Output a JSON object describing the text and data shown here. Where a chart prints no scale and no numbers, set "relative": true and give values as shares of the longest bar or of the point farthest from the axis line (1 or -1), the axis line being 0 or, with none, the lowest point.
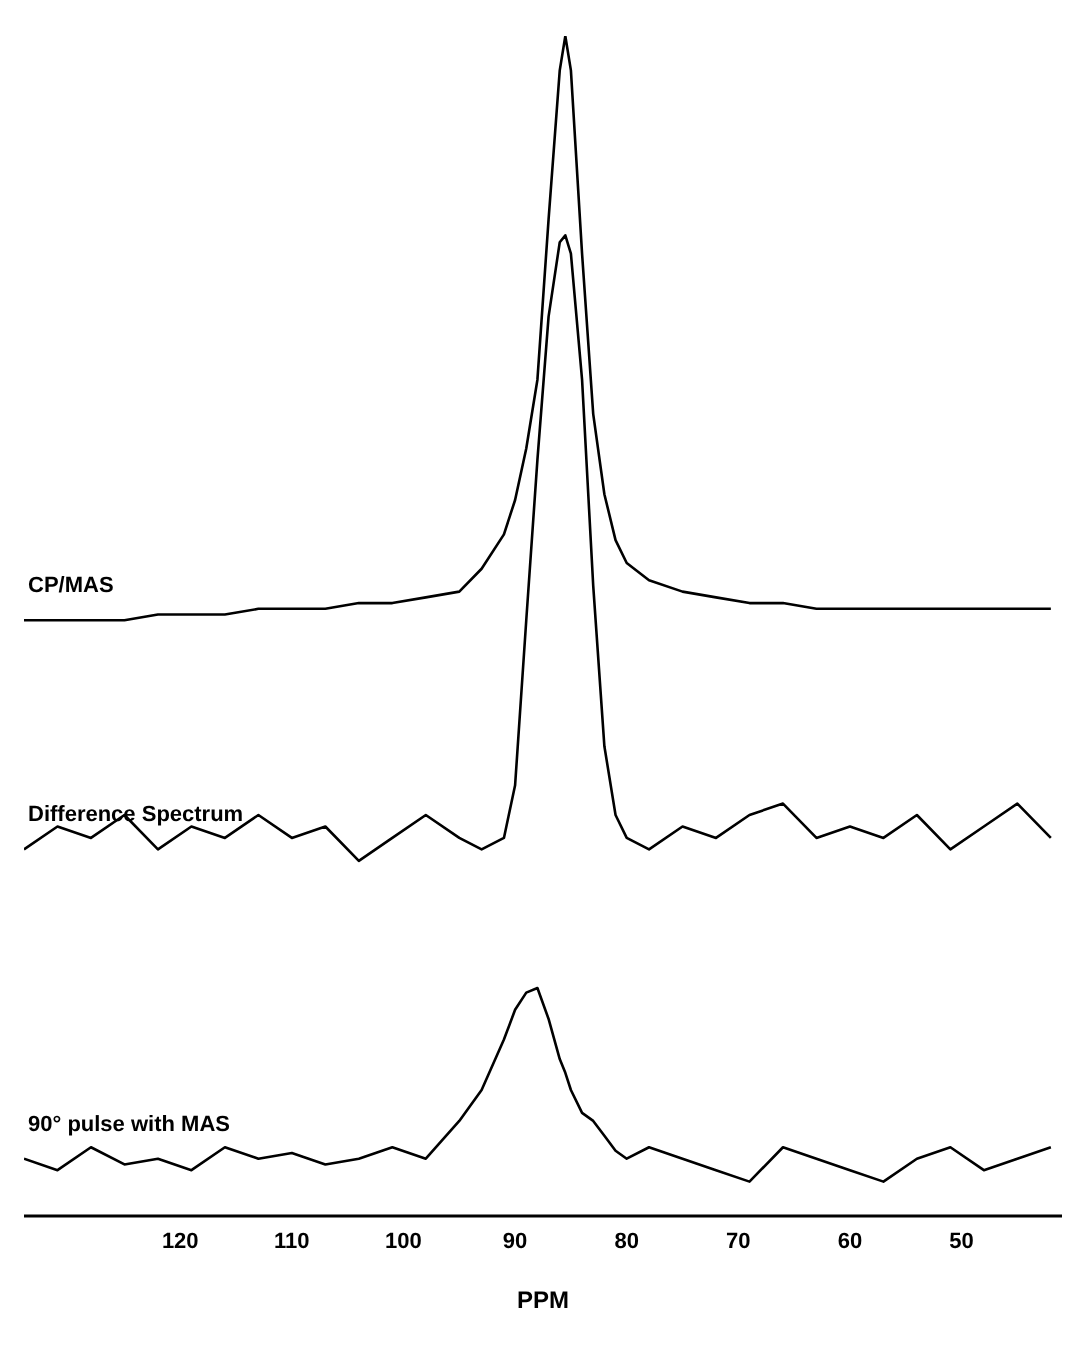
{
  "chart_data": {
    "type": "line",
    "relative": true,
    "xlabel": "PPM",
    "xlim": [
      134,
      41
    ],
    "xticks": [
      120,
      110,
      100,
      90,
      80,
      70,
      60,
      50
    ],
    "x": [
      134,
      131,
      128,
      125,
      122,
      119,
      116,
      113,
      110,
      107,
      104,
      101,
      98,
      95,
      93,
      91,
      90,
      89,
      88,
      87,
      86,
      85.5,
      85,
      84,
      83,
      82,
      81,
      80,
      78,
      75,
      72,
      69,
      66,
      63,
      60,
      57,
      54,
      51,
      48,
      45,
      42
    ],
    "series": [
      {
        "name": "CP/MAS",
        "color": "#000000",
        "values": [
          0.49,
          0.49,
          0.49,
          0.49,
          0.495,
          0.495,
          0.495,
          0.5,
          0.5,
          0.5,
          0.505,
          0.505,
          0.51,
          0.515,
          0.535,
          0.565,
          0.595,
          0.64,
          0.7,
          0.84,
          0.97,
          1.0,
          0.97,
          0.81,
          0.67,
          0.6,
          0.56,
          0.54,
          0.525,
          0.515,
          0.51,
          0.505,
          0.505,
          0.5,
          0.5,
          0.5,
          0.5,
          0.5,
          0.5,
          0.5,
          0.5
        ]
      },
      {
        "name": "Difference Spectrum",
        "color": "#000000",
        "values": [
          0.29,
          0.31,
          0.3,
          0.32,
          0.29,
          0.31,
          0.3,
          0.32,
          0.3,
          0.31,
          0.28,
          0.3,
          0.32,
          0.3,
          0.29,
          0.3,
          0.346,
          0.49,
          0.63,
          0.755,
          0.82,
          0.826,
          0.81,
          0.7,
          0.52,
          0.38,
          0.32,
          0.3,
          0.29,
          0.31,
          0.3,
          0.32,
          0.33,
          0.3,
          0.31,
          0.3,
          0.32,
          0.29,
          0.31,
          0.33,
          0.3
        ]
      },
      {
        "name": "90° pulse with MAS",
        "color": "#000000",
        "values": [
          0.02,
          0.01,
          0.03,
          0.015,
          0.02,
          0.01,
          0.03,
          0.02,
          0.025,
          0.015,
          0.02,
          0.03,
          0.02,
          0.053,
          0.08,
          0.124,
          0.15,
          0.165,
          0.169,
          0.142,
          0.107,
          0.095,
          0.08,
          0.06,
          0.053,
          0.04,
          0.027,
          0.02,
          0.03,
          0.02,
          0.01,
          0.0,
          0.03,
          0.02,
          0.01,
          0.0,
          0.02,
          0.03,
          0.01,
          0.02,
          0.03
        ]
      }
    ]
  }
}
